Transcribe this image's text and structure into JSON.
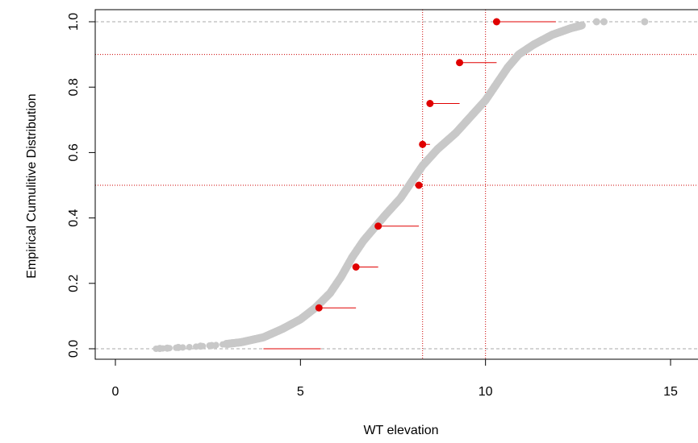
{
  "chart_data": {
    "type": "scatter",
    "title": "",
    "xlabel": "WT elevation",
    "ylabel": "Empirical Cumulitive Distribution",
    "xlim": [
      -1,
      15.5
    ],
    "ylim": [
      -0.04,
      1.04
    ],
    "x_ticks": [
      {
        "value": 0,
        "label": "0"
      },
      {
        "value": 5,
        "label": "5"
      },
      {
        "value": 10,
        "label": "10"
      },
      {
        "value": 15,
        "label": "15"
      }
    ],
    "y_ticks": [
      {
        "value": 0.0,
        "label": "0.0"
      },
      {
        "value": 0.2,
        "label": "0.2"
      },
      {
        "value": 0.4,
        "label": "0.4"
      },
      {
        "value": 0.6,
        "label": "0.6"
      },
      {
        "value": 0.8,
        "label": "0.8"
      },
      {
        "value": 1.0,
        "label": "1.0"
      }
    ],
    "series": [
      {
        "type": "scatter",
        "color": "#c8c8c8",
        "curve_knots": [
          [
            1.1,
            0.0
          ],
          [
            2.0,
            0.005
          ],
          [
            2.8,
            0.012
          ],
          [
            3.4,
            0.02
          ],
          [
            4.0,
            0.035
          ],
          [
            4.5,
            0.06
          ],
          [
            5.0,
            0.09
          ],
          [
            5.4,
            0.125
          ],
          [
            5.8,
            0.17
          ],
          [
            6.1,
            0.22
          ],
          [
            6.4,
            0.28
          ],
          [
            6.7,
            0.33
          ],
          [
            7.0,
            0.37
          ],
          [
            7.3,
            0.41
          ],
          [
            7.7,
            0.46
          ],
          [
            8.0,
            0.51
          ],
          [
            8.3,
            0.56
          ],
          [
            8.7,
            0.61
          ],
          [
            9.2,
            0.66
          ],
          [
            9.6,
            0.71
          ],
          [
            10.0,
            0.76
          ],
          [
            10.3,
            0.81
          ],
          [
            10.6,
            0.86
          ],
          [
            10.9,
            0.9
          ],
          [
            11.3,
            0.93
          ],
          [
            11.8,
            0.96
          ],
          [
            12.3,
            0.98
          ],
          [
            12.8,
            0.995
          ],
          [
            13.2,
            1.0
          ]
        ],
        "scattered_points": [
          [
            1.2,
            0.001
          ],
          [
            1.4,
            0.002
          ],
          [
            1.7,
            0.004
          ],
          [
            2.3,
            0.008
          ],
          [
            2.6,
            0.01
          ],
          [
            13.0,
            1.0
          ],
          [
            13.2,
            1.0
          ],
          [
            14.3,
            1.0
          ]
        ]
      },
      {
        "type": "scatter",
        "color": "#e00000",
        "points": [
          {
            "x": 4.0,
            "y": 0.0,
            "x_end": 5.55
          },
          {
            "x": 5.5,
            "y": 0.125,
            "x_end": 6.5
          },
          {
            "x": 6.5,
            "y": 0.25,
            "x_end": 7.1
          },
          {
            "x": 7.1,
            "y": 0.375,
            "x_end": 8.2
          },
          {
            "x": 8.2,
            "y": 0.5,
            "x_end": 8.3
          },
          {
            "x": 8.3,
            "y": 0.625,
            "x_end": 8.5
          },
          {
            "x": 8.5,
            "y": 0.75,
            "x_end": 9.3
          },
          {
            "x": 9.3,
            "y": 0.875,
            "x_end": 10.3
          },
          {
            "x": 10.3,
            "y": 1.0,
            "x_end": 11.9
          }
        ]
      }
    ],
    "reference_lines": {
      "horizontal": [
        0.0,
        1.0,
        0.5,
        0.9
      ],
      "vertical": [
        8.3,
        10.0
      ]
    },
    "grid": false,
    "legend": "none"
  }
}
